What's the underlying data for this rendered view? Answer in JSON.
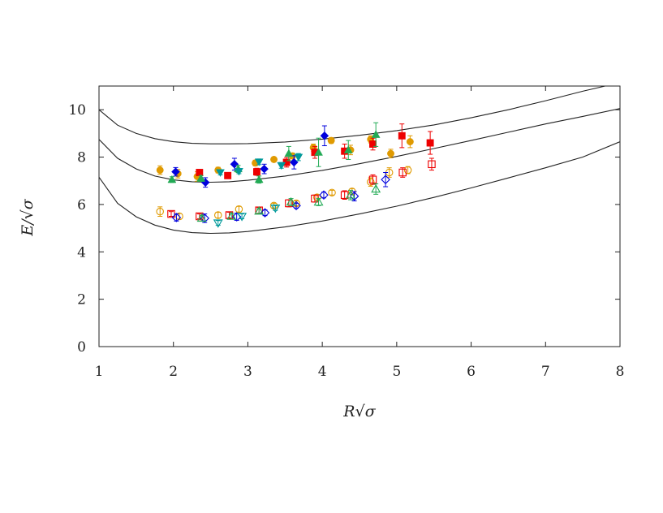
{
  "chart_data": {
    "type": "scatter",
    "xlabel": "R√σ",
    "ylabel": "E/√σ",
    "xlim": [
      1,
      8
    ],
    "ylim": [
      0,
      11
    ],
    "x_ticks": [
      "1",
      "2",
      "3",
      "4",
      "5",
      "6",
      "7",
      "8"
    ],
    "y_ticks": [
      "0",
      "2",
      "4",
      "6",
      "8",
      "10"
    ],
    "grid": false,
    "colors": {
      "orange": "#e09a00",
      "red": "#ee0000",
      "blue": "#0000dd",
      "green": "#22aa55",
      "teal": "#00999a",
      "curve": "#222222"
    },
    "curves": [
      {
        "x": [
          1.0,
          1.25,
          1.5,
          1.75,
          2.0,
          2.25,
          2.5,
          2.75,
          3.0,
          3.5,
          4.0,
          4.5,
          5.0,
          5.5,
          6.0,
          6.5,
          7.0,
          7.5,
          7.8
        ],
        "y": [
          10.0,
          9.35,
          9.0,
          8.78,
          8.65,
          8.58,
          8.56,
          8.56,
          8.57,
          8.64,
          8.76,
          8.92,
          9.12,
          9.36,
          9.66,
          10.0,
          10.38,
          10.78,
          11.0
        ]
      },
      {
        "x": [
          1.0,
          1.25,
          1.5,
          1.75,
          2.0,
          2.25,
          2.5,
          2.75,
          3.0,
          3.5,
          4.0,
          4.5,
          5.0,
          5.5,
          6.0,
          6.5,
          7.0,
          7.5,
          8.0
        ],
        "y": [
          8.75,
          7.95,
          7.5,
          7.2,
          7.04,
          6.96,
          6.94,
          6.96,
          7.02,
          7.2,
          7.44,
          7.72,
          8.03,
          8.36,
          8.7,
          9.05,
          9.4,
          9.72,
          10.05
        ]
      },
      {
        "x": [
          1.0,
          1.25,
          1.5,
          1.75,
          2.0,
          2.25,
          2.5,
          2.75,
          3.0,
          3.5,
          4.0,
          4.5,
          5.0,
          5.5,
          6.0,
          6.5,
          7.0,
          7.5,
          8.0
        ],
        "y": [
          7.15,
          6.05,
          5.48,
          5.13,
          4.92,
          4.81,
          4.78,
          4.8,
          4.86,
          5.05,
          5.3,
          5.6,
          5.93,
          6.3,
          6.7,
          7.12,
          7.55,
          8.0,
          8.65
        ]
      }
    ],
    "series": [
      {
        "marker": "circle",
        "filled": true,
        "color": "orange",
        "points": [
          [
            1.82,
            7.45
          ],
          [
            2.06,
            7.3
          ],
          [
            2.32,
            7.18
          ],
          [
            2.6,
            7.45
          ],
          [
            3.1,
            7.75
          ],
          [
            3.35,
            7.9
          ],
          [
            3.6,
            8.05
          ],
          [
            3.88,
            8.4
          ],
          [
            4.12,
            8.7
          ],
          [
            4.38,
            8.3
          ],
          [
            4.65,
            8.75
          ],
          [
            4.92,
            8.15
          ],
          [
            5.18,
            8.65
          ]
        ],
        "err": [
          0.18,
          0.18,
          0.2,
          0.12,
          0.12,
          0.1,
          0.12,
          0.15,
          0.12,
          0.2,
          0.15,
          0.18,
          0.25
        ]
      },
      {
        "marker": "square",
        "filled": true,
        "color": "red",
        "points": [
          [
            2.35,
            7.35
          ],
          [
            2.73,
            7.22
          ],
          [
            3.12,
            7.38
          ],
          [
            3.52,
            7.78
          ],
          [
            3.9,
            8.2
          ],
          [
            4.3,
            8.25
          ],
          [
            4.68,
            8.55
          ],
          [
            5.07,
            8.9
          ],
          [
            5.45,
            8.6
          ]
        ],
        "err": [
          0.12,
          0.12,
          0.15,
          0.2,
          0.25,
          0.3,
          0.25,
          0.5,
          0.48
        ]
      },
      {
        "marker": "diamond",
        "filled": true,
        "color": "blue",
        "points": [
          [
            2.03,
            7.38
          ],
          [
            2.43,
            6.93
          ],
          [
            2.82,
            7.7
          ],
          [
            3.22,
            7.5
          ],
          [
            3.62,
            7.78
          ],
          [
            4.03,
            8.9
          ]
        ],
        "err": [
          0.18,
          0.2,
          0.25,
          0.2,
          0.28,
          0.42
        ]
      },
      {
        "marker": "triangle-up",
        "filled": true,
        "color": "green",
        "points": [
          [
            1.98,
            7.05
          ],
          [
            2.37,
            7.1
          ],
          [
            2.87,
            7.5
          ],
          [
            3.15,
            7.05
          ],
          [
            3.55,
            8.15
          ],
          [
            3.95,
            8.2
          ],
          [
            4.35,
            8.3
          ],
          [
            4.72,
            8.95
          ]
        ],
        "err": [
          0.12,
          0.12,
          0.15,
          0.15,
          0.3,
          0.6,
          0.4,
          0.5
        ]
      },
      {
        "marker": "triangle-down",
        "filled": true,
        "color": "teal",
        "points": [
          [
            2.63,
            7.35
          ],
          [
            2.88,
            7.4
          ],
          [
            3.15,
            7.8
          ],
          [
            3.45,
            7.65
          ],
          [
            3.68,
            8.0
          ]
        ],
        "err": [
          0.1,
          0.1,
          0.12,
          0.12,
          0.15
        ]
      },
      {
        "marker": "circle",
        "filled": false,
        "color": "orange",
        "points": [
          [
            1.82,
            5.7
          ],
          [
            2.08,
            5.5
          ],
          [
            2.6,
            5.55
          ],
          [
            2.88,
            5.8
          ],
          [
            3.35,
            5.95
          ],
          [
            3.65,
            6.05
          ],
          [
            3.93,
            6.3
          ],
          [
            4.13,
            6.5
          ],
          [
            4.4,
            6.55
          ],
          [
            4.65,
            6.95
          ],
          [
            4.9,
            7.35
          ],
          [
            5.15,
            7.45
          ]
        ],
        "err": [
          0.2,
          0.12,
          0.12,
          0.12,
          0.1,
          0.1,
          0.12,
          0.1,
          0.12,
          0.18,
          0.2,
          0.15
        ]
      },
      {
        "marker": "square",
        "filled": false,
        "color": "red",
        "points": [
          [
            1.97,
            5.6
          ],
          [
            2.35,
            5.5
          ],
          [
            2.75,
            5.55
          ],
          [
            3.15,
            5.75
          ],
          [
            3.55,
            6.05
          ],
          [
            3.9,
            6.25
          ],
          [
            4.3,
            6.4
          ],
          [
            4.68,
            7.05
          ],
          [
            5.08,
            7.35
          ],
          [
            5.47,
            7.7
          ]
        ],
        "err": [
          0.1,
          0.1,
          0.12,
          0.12,
          0.15,
          0.15,
          0.18,
          0.2,
          0.2,
          0.25
        ]
      },
      {
        "marker": "diamond",
        "filled": false,
        "color": "blue",
        "points": [
          [
            2.04,
            5.45
          ],
          [
            2.42,
            5.42
          ],
          [
            2.85,
            5.48
          ],
          [
            3.23,
            5.65
          ],
          [
            3.65,
            5.95
          ],
          [
            4.02,
            6.4
          ],
          [
            4.43,
            6.35
          ],
          [
            4.85,
            7.05
          ]
        ],
        "err": [
          0.15,
          0.18,
          0.15,
          0.12,
          0.1,
          0.12,
          0.2,
          0.3
        ]
      },
      {
        "marker": "triangle-up",
        "filled": false,
        "color": "green",
        "points": [
          [
            2.38,
            5.42
          ],
          [
            2.78,
            5.5
          ],
          [
            3.15,
            5.72
          ],
          [
            3.58,
            6.1
          ],
          [
            3.95,
            6.1
          ],
          [
            4.38,
            6.4
          ],
          [
            4.72,
            6.65
          ]
        ],
        "err": [
          0.12,
          0.12,
          0.1,
          0.15,
          0.15,
          0.2,
          0.22
        ]
      },
      {
        "marker": "triangle-down",
        "filled": false,
        "color": "teal",
        "points": [
          [
            2.6,
            5.22
          ],
          [
            2.92,
            5.5
          ],
          [
            3.37,
            5.85
          ]
        ],
        "err": [
          0.1,
          0.1,
          0.1
        ]
      }
    ]
  }
}
